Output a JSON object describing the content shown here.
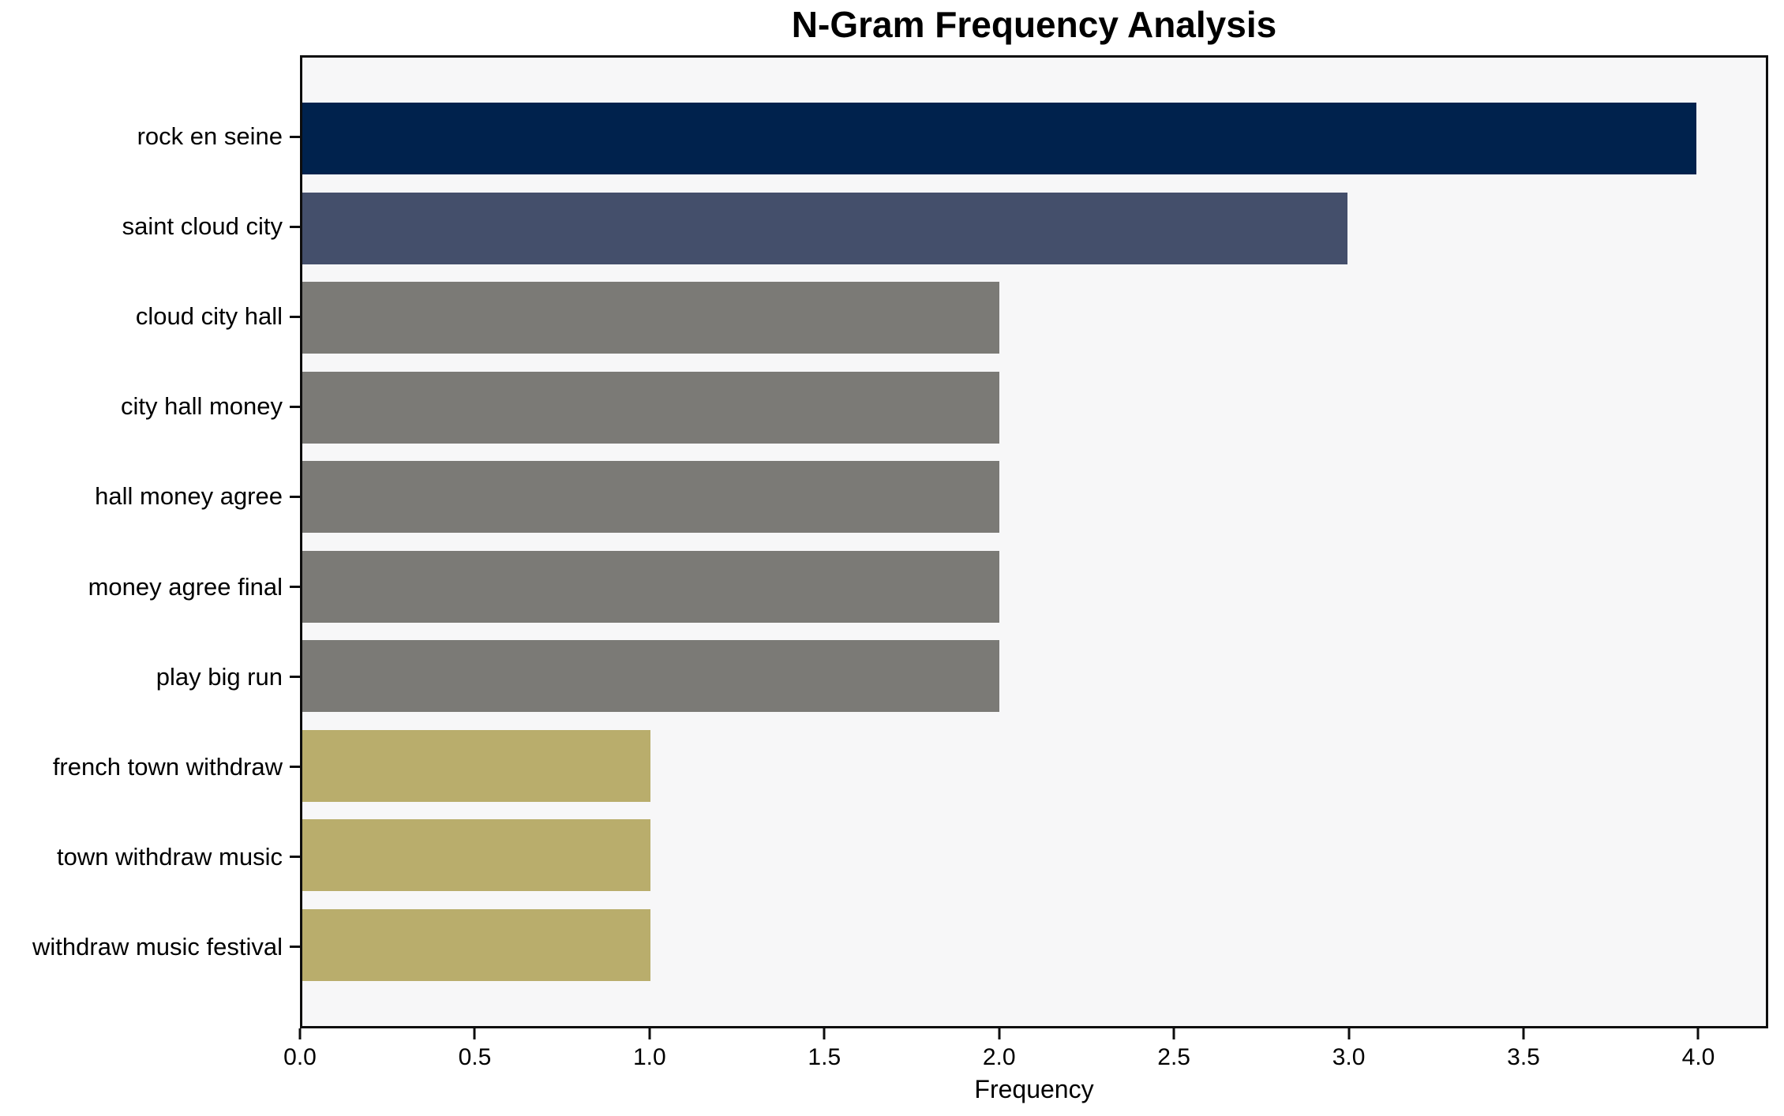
{
  "chart_data": {
    "type": "bar",
    "orientation": "horizontal",
    "title": "N-Gram Frequency Analysis",
    "xlabel": "Frequency",
    "ylabel": "",
    "categories": [
      "rock en seine",
      "saint cloud city",
      "cloud city hall",
      "city hall money",
      "hall money agree",
      "money agree final",
      "play big run",
      "french town withdraw",
      "town withdraw music",
      "withdraw music festival"
    ],
    "values": [
      4,
      3,
      2,
      2,
      2,
      2,
      2,
      1,
      1,
      1
    ],
    "bar_colors": [
      "#00224d",
      "#444f6b",
      "#7b7a76",
      "#7b7a76",
      "#7b7a76",
      "#7b7a76",
      "#7b7a76",
      "#b9ad6c",
      "#b9ad6c",
      "#b9ad6c"
    ],
    "xlim": [
      0,
      4.2
    ],
    "xticks": [
      {
        "value": 0.0,
        "label": "0.0"
      },
      {
        "value": 0.5,
        "label": "0.5"
      },
      {
        "value": 1.0,
        "label": "1.0"
      },
      {
        "value": 1.5,
        "label": "1.5"
      },
      {
        "value": 2.0,
        "label": "2.0"
      },
      {
        "value": 2.5,
        "label": "2.5"
      },
      {
        "value": 3.0,
        "label": "3.0"
      },
      {
        "value": 3.5,
        "label": "3.5"
      },
      {
        "value": 4.0,
        "label": "4.0"
      }
    ],
    "grid": false,
    "legend": null,
    "plot_background": "#f7f7f8",
    "figure_background": "#ffffff",
    "spine_color": "#0d0d0d"
  }
}
